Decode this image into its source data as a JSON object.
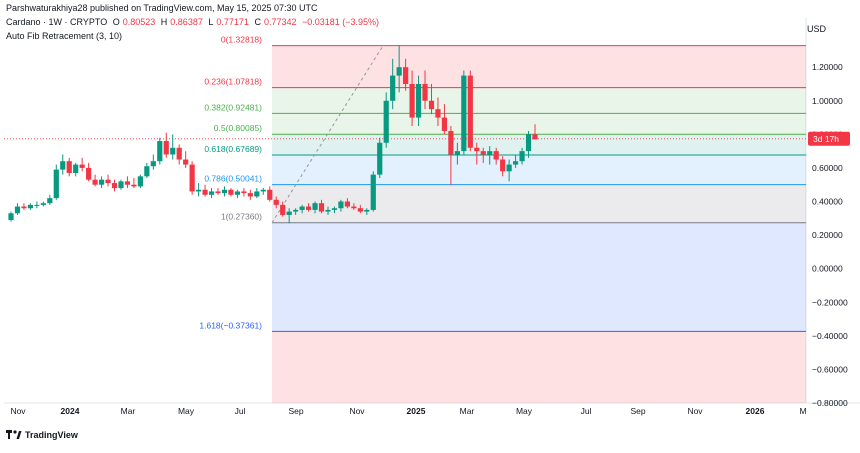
{
  "header": {
    "published": "Parshwaturakhiya28 published on TradingView.com, May 15, 2025 07:30 UTC",
    "symbol": "Cardano · 1W · CRYPTO",
    "open_label": "O",
    "open": "0.80523",
    "high_label": "H",
    "high": "0.86387",
    "low_label": "L",
    "low": "0.77171",
    "close_label": "C",
    "close": "0.77342",
    "change": "−0.03181 (−3.95%)",
    "indicator": "Auto Fib Retracement (3, 10)"
  },
  "axis_currency": "USD",
  "price_badge": {
    "price": "0.77342",
    "countdown": "3d 17h"
  },
  "footer": {
    "brand": "TradingView"
  },
  "colors": {
    "up": "#089981",
    "down": "#f23645",
    "text": "#131722"
  },
  "chart_data": {
    "type": "candlestick",
    "title": "Cardano · 1W · CRYPTO",
    "ylabel": "USD",
    "ylim": [
      -0.8,
      1.35
    ],
    "y_ticks": [
      "1.20000",
      "1.00000",
      "0.80000",
      "0.60000",
      "0.40000",
      "0.20000",
      "0.00000",
      "−0.20000",
      "−0.40000",
      "−0.60000",
      "−0.80000"
    ],
    "x_ticks": [
      "Nov",
      "2024",
      "Mar",
      "May",
      "Jul",
      "Sep",
      "Nov",
      "2025",
      "Mar",
      "May",
      "Jul",
      "Sep",
      "Nov",
      "2026",
      "M"
    ],
    "fib_levels": [
      {
        "ratio": "0",
        "price": 1.32818,
        "label": "0(1.32818)",
        "color": "#f23645"
      },
      {
        "ratio": "0.236",
        "price": 1.07818,
        "label": "0.236(1.07818)",
        "color": "#f23645"
      },
      {
        "ratio": "0.382",
        "price": 0.92481,
        "label": "0.382(0.92481)",
        "color": "#4caf50"
      },
      {
        "ratio": "0.5",
        "price": 0.80085,
        "label": "0.5(0.80085)",
        "color": "#4caf50"
      },
      {
        "ratio": "0.618",
        "price": 0.67689,
        "label": "0.618(0.67689)",
        "color": "#089981"
      },
      {
        "ratio": "0.786",
        "price": 0.50041,
        "label": "0.786(0.50041)",
        "color": "#2196f3"
      },
      {
        "ratio": "1",
        "price": 0.2736,
        "label": "1(0.27360)",
        "color": "#787b86"
      },
      {
        "ratio": "1.618",
        "price": -0.37361,
        "label": "1.618(−0.37361)",
        "color": "#2962ff"
      }
    ],
    "candles": [
      [
        0.29,
        0.34,
        0.28,
        0.33
      ],
      [
        0.33,
        0.39,
        0.32,
        0.37
      ],
      [
        0.37,
        0.39,
        0.35,
        0.36
      ],
      [
        0.36,
        0.39,
        0.35,
        0.38
      ],
      [
        0.38,
        0.4,
        0.36,
        0.38
      ],
      [
        0.38,
        0.4,
        0.37,
        0.39
      ],
      [
        0.39,
        0.44,
        0.38,
        0.42
      ],
      [
        0.42,
        0.62,
        0.41,
        0.59
      ],
      [
        0.59,
        0.68,
        0.56,
        0.64
      ],
      [
        0.64,
        0.66,
        0.55,
        0.57
      ],
      [
        0.57,
        0.63,
        0.55,
        0.62
      ],
      [
        0.62,
        0.66,
        0.58,
        0.6
      ],
      [
        0.6,
        0.63,
        0.52,
        0.53
      ],
      [
        0.53,
        0.56,
        0.49,
        0.5
      ],
      [
        0.5,
        0.55,
        0.48,
        0.53
      ],
      [
        0.53,
        0.56,
        0.49,
        0.51
      ],
      [
        0.51,
        0.53,
        0.46,
        0.48
      ],
      [
        0.48,
        0.53,
        0.47,
        0.52
      ],
      [
        0.52,
        0.55,
        0.48,
        0.5
      ],
      [
        0.5,
        0.54,
        0.48,
        0.49
      ],
      [
        0.49,
        0.56,
        0.48,
        0.55
      ],
      [
        0.55,
        0.63,
        0.54,
        0.61
      ],
      [
        0.61,
        0.68,
        0.59,
        0.64
      ],
      [
        0.64,
        0.78,
        0.62,
        0.76
      ],
      [
        0.76,
        0.81,
        0.66,
        0.68
      ],
      [
        0.68,
        0.8,
        0.65,
        0.72
      ],
      [
        0.72,
        0.74,
        0.62,
        0.65
      ],
      [
        0.65,
        0.7,
        0.6,
        0.62
      ],
      [
        0.62,
        0.64,
        0.44,
        0.46
      ],
      [
        0.46,
        0.51,
        0.43,
        0.47
      ],
      [
        0.47,
        0.5,
        0.43,
        0.44
      ],
      [
        0.44,
        0.48,
        0.42,
        0.46
      ],
      [
        0.46,
        0.48,
        0.44,
        0.45
      ],
      [
        0.45,
        0.49,
        0.43,
        0.47
      ],
      [
        0.47,
        0.48,
        0.43,
        0.44
      ],
      [
        0.44,
        0.47,
        0.42,
        0.46
      ],
      [
        0.46,
        0.48,
        0.43,
        0.45
      ],
      [
        0.45,
        0.47,
        0.41,
        0.43
      ],
      [
        0.43,
        0.48,
        0.42,
        0.46
      ],
      [
        0.46,
        0.48,
        0.44,
        0.47
      ],
      [
        0.47,
        0.49,
        0.4,
        0.41
      ],
      [
        0.41,
        0.43,
        0.36,
        0.38
      ],
      [
        0.38,
        0.4,
        0.31,
        0.32
      ],
      [
        0.32,
        0.36,
        0.27,
        0.34
      ],
      [
        0.34,
        0.36,
        0.32,
        0.35
      ],
      [
        0.35,
        0.38,
        0.33,
        0.37
      ],
      [
        0.37,
        0.39,
        0.34,
        0.35
      ],
      [
        0.35,
        0.4,
        0.33,
        0.39
      ],
      [
        0.39,
        0.41,
        0.33,
        0.34
      ],
      [
        0.34,
        0.37,
        0.32,
        0.35
      ],
      [
        0.35,
        0.37,
        0.33,
        0.36
      ],
      [
        0.36,
        0.41,
        0.34,
        0.4
      ],
      [
        0.4,
        0.42,
        0.36,
        0.37
      ],
      [
        0.37,
        0.39,
        0.35,
        0.36
      ],
      [
        0.36,
        0.38,
        0.33,
        0.34
      ],
      [
        0.34,
        0.36,
        0.32,
        0.35
      ],
      [
        0.35,
        0.58,
        0.34,
        0.56
      ],
      [
        0.56,
        0.78,
        0.54,
        0.75
      ],
      [
        0.75,
        1.05,
        0.72,
        1.0
      ],
      [
        1.0,
        1.25,
        0.95,
        1.15
      ],
      [
        1.15,
        1.33,
        1.05,
        1.2
      ],
      [
        1.2,
        1.25,
        1.06,
        1.1
      ],
      [
        1.1,
        1.18,
        0.85,
        0.9
      ],
      [
        0.9,
        1.15,
        0.85,
        1.1
      ],
      [
        1.1,
        1.18,
        0.95,
        1.0
      ],
      [
        1.0,
        1.1,
        0.92,
        0.95
      ],
      [
        0.95,
        1.02,
        0.85,
        0.9
      ],
      [
        0.9,
        0.98,
        0.8,
        0.82
      ],
      [
        0.82,
        0.85,
        0.5,
        0.68
      ],
      [
        0.68,
        0.75,
        0.62,
        0.7
      ],
      [
        0.7,
        1.18,
        0.68,
        1.15
      ],
      [
        1.15,
        1.18,
        0.7,
        0.72
      ],
      [
        0.72,
        0.75,
        0.62,
        0.7
      ],
      [
        0.7,
        0.72,
        0.63,
        0.68
      ],
      [
        0.68,
        0.73,
        0.62,
        0.7
      ],
      [
        0.7,
        0.72,
        0.62,
        0.65
      ],
      [
        0.65,
        0.67,
        0.55,
        0.58
      ],
      [
        0.58,
        0.65,
        0.52,
        0.62
      ],
      [
        0.62,
        0.68,
        0.6,
        0.64
      ],
      [
        0.64,
        0.72,
        0.62,
        0.7
      ],
      [
        0.7,
        0.82,
        0.66,
        0.8
      ],
      [
        0.8,
        0.86,
        0.77,
        0.77
      ]
    ]
  }
}
